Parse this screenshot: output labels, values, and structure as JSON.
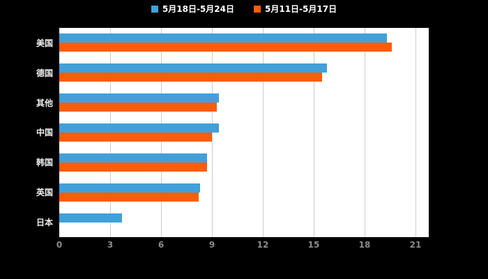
{
  "chart_data": {
    "type": "bar",
    "orientation": "horizontal",
    "title": "",
    "xlabel": "",
    "ylabel": "",
    "categories": [
      "美国",
      "德国",
      "其他",
      "中国",
      "韩国",
      "英国",
      "日本"
    ],
    "series": [
      {
        "name": "5月18日-5月24日",
        "color": "#41a0d9",
        "values": [
          19.3,
          15.8,
          9.4,
          9.4,
          8.7,
          8.3,
          3.7
        ]
      },
      {
        "name": "5月11日-5月17日",
        "color": "#fa5e0c",
        "values": [
          19.6,
          15.5,
          9.3,
          9.0,
          8.7,
          8.2,
          0
        ]
      }
    ],
    "xlim": [
      0,
      21
    ],
    "xticks": [
      0,
      3,
      6,
      9,
      12,
      15,
      18,
      21
    ],
    "grid": true,
    "legend_position": "top"
  },
  "colors": {
    "background": "#000000",
    "plot_background": "#ffffff",
    "grid": "#cccccc",
    "tick_label": "#8a8a8a",
    "category_label": "#ededed"
  }
}
